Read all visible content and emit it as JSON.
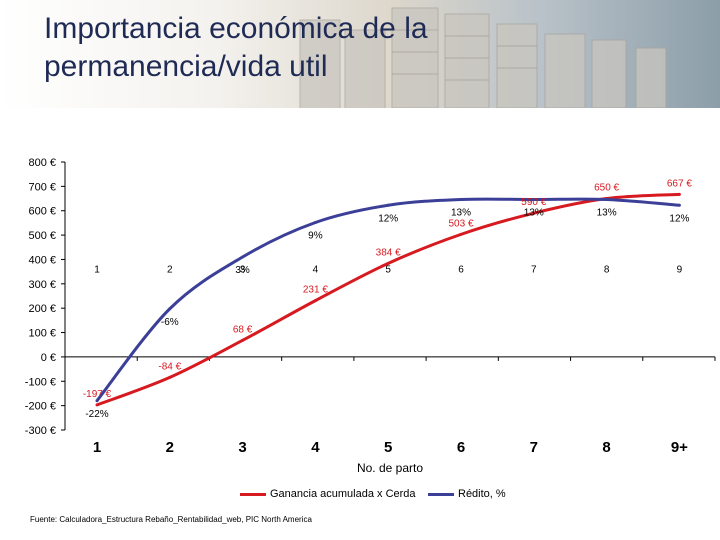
{
  "slide": {
    "title_line1": "Importancia económica de la",
    "title_line2": "permanencia/vida util"
  },
  "chart_data": {
    "type": "line",
    "categories": [
      "1",
      "2",
      "3",
      "4",
      "5",
      "6",
      "7",
      "8",
      "9+"
    ],
    "inner_x_labels": [
      "1",
      "2",
      "3",
      "4",
      "5",
      "6",
      "7",
      "8",
      "9"
    ],
    "xlabel": "No. de parto",
    "y_ticks": [
      "800 €",
      "700 €",
      "600 €",
      "500 €",
      "400 €",
      "300 €",
      "200 €",
      "100 €",
      "0 €",
      "-100 €",
      "-200 €",
      "-300 €"
    ],
    "ylim": [
      -300,
      800
    ],
    "series": [
      {
        "name": "Ganancia acumulada x Cerda",
        "color": "#d71920",
        "values": [
          -197,
          -84,
          68,
          231,
          384,
          503,
          590,
          650,
          667
        ],
        "labels": [
          "-197 €",
          "-84 €",
          "68 €",
          "231 €",
          "384 €",
          "503 €",
          "590 €",
          "650 €",
          "667 €"
        ]
      },
      {
        "name": "Rédito, %",
        "color": "#3b3f97",
        "values": [
          -22,
          -6,
          3,
          9,
          12,
          13,
          13,
          13,
          12
        ],
        "labels": [
          "-22%",
          "-6%",
          "3%",
          "9%",
          "12%",
          "13%",
          "13%",
          "13%",
          "12%"
        ]
      }
    ],
    "grid": false,
    "legend_position": "bottom"
  },
  "footer": {
    "source": "Fuente: Calculadora_Estructura Rebaño_Rentabilidad_web, PIC North America"
  }
}
